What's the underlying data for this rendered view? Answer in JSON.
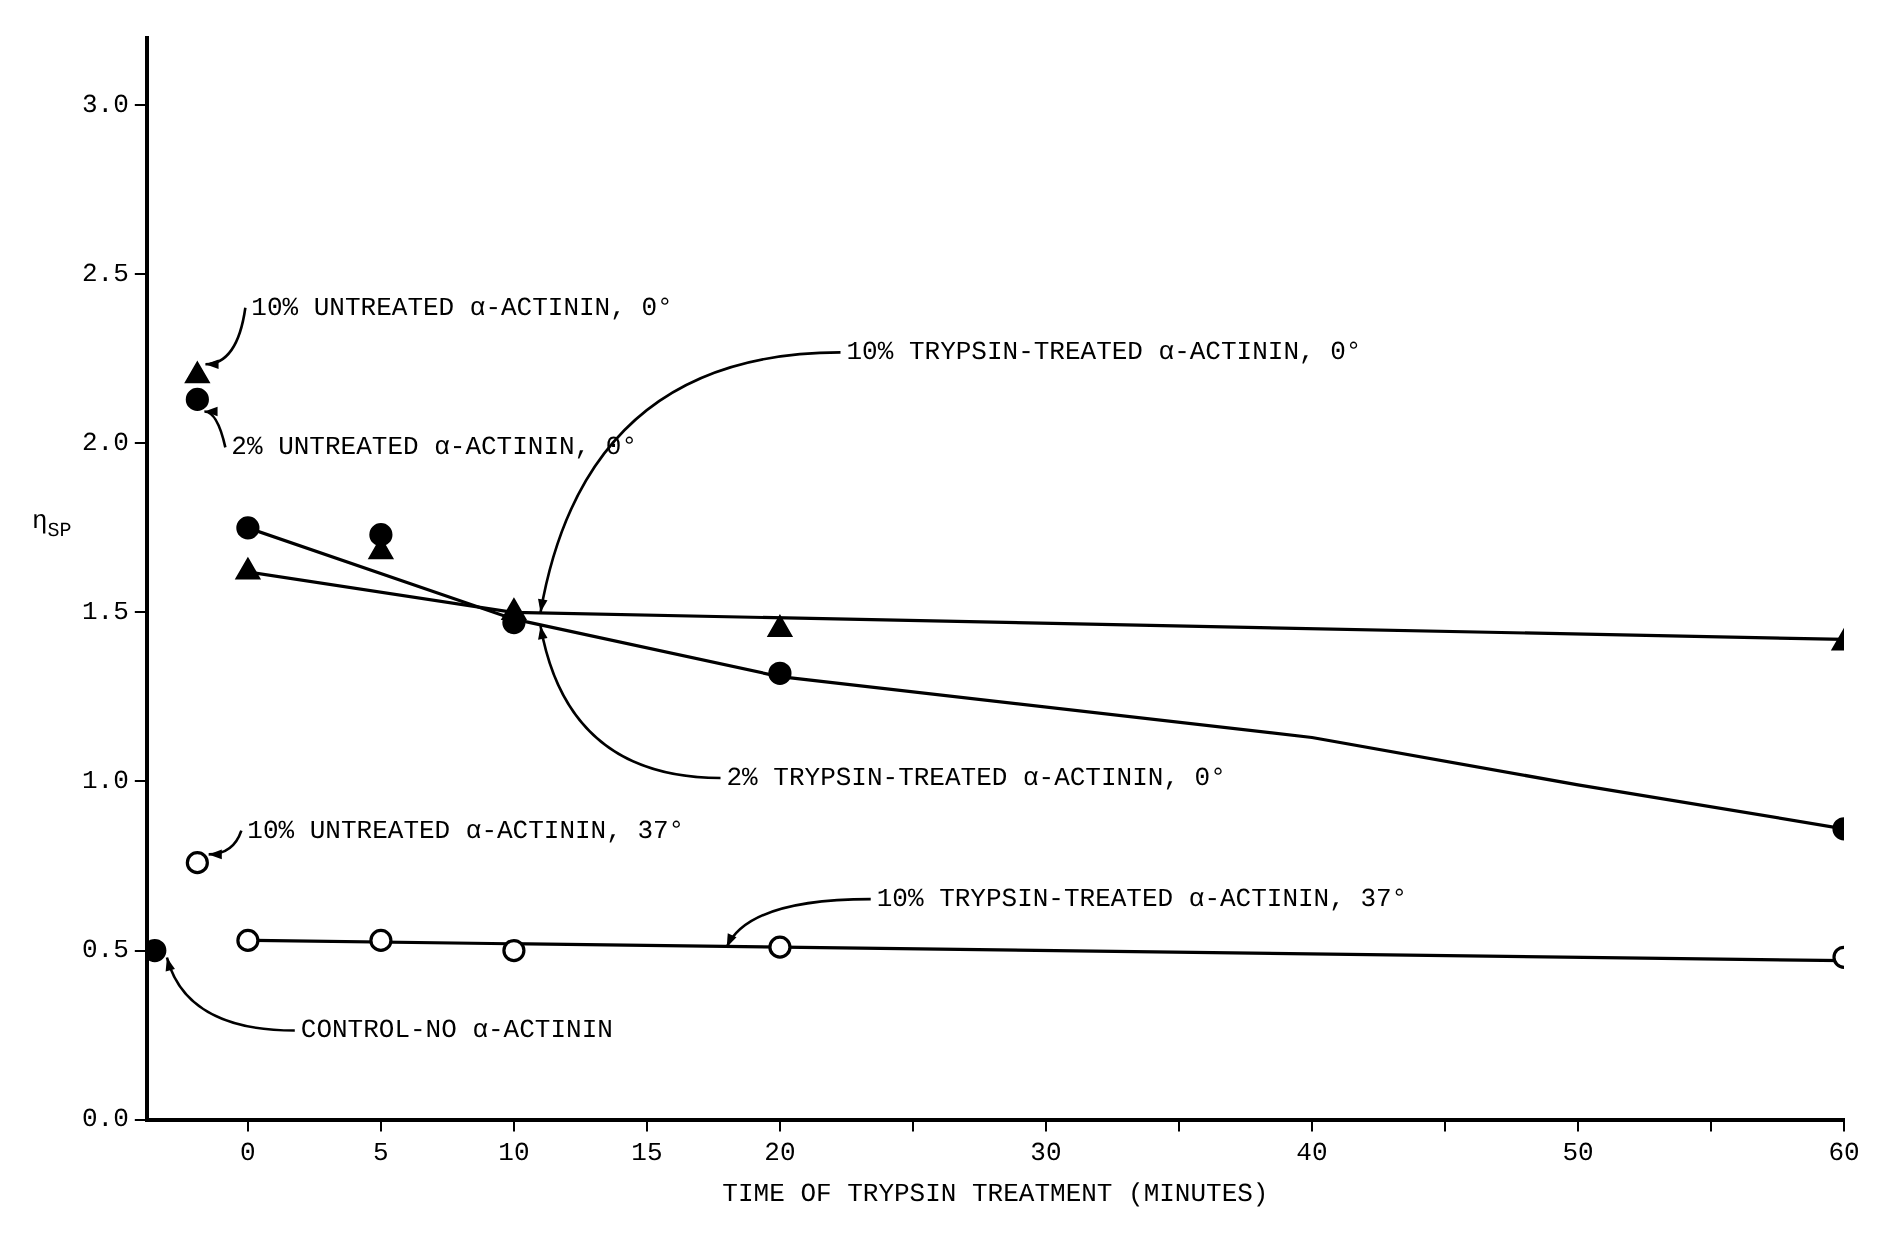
{
  "chart_data": {
    "type": "scatter",
    "xlabel": "TIME OF TRYPSIN TREATMENT (MINUTES)",
    "ylabel": "η$_{SP}$",
    "xlim": [
      -3.8,
      60
    ],
    "ylim": [
      0,
      3.2
    ],
    "xticks": [
      0,
      5,
      10,
      15,
      20,
      {
        "value": 25,
        "label": null
      },
      30,
      {
        "value": 35,
        "label": null
      },
      40,
      {
        "value": 45,
        "label": null
      },
      50,
      {
        "value": 55,
        "label": null
      },
      60
    ],
    "yticks": [
      {
        "value": 0,
        "label": "0.0"
      },
      0.5,
      {
        "value": 1,
        "label": "1.0"
      },
      1.5,
      {
        "value": 2,
        "label": "2.0"
      },
      2.5,
      {
        "value": 3,
        "label": "3.0"
      }
    ],
    "grid": false,
    "legend": false,
    "series": [
      {
        "marker": "triangle",
        "color": "#000000",
        "x": [
          0,
          5,
          10,
          20,
          60
        ],
        "values": [
          1.62,
          1.68,
          1.5,
          1.45,
          1.41
        ]
      },
      {
        "marker": "circle",
        "color": "#000000",
        "x": [
          0,
          5,
          10,
          20,
          60
        ],
        "values": [
          1.75,
          1.73,
          1.47,
          1.32,
          0.86
        ]
      },
      {
        "marker": "circle",
        "color": "#ffffff",
        "x": [
          0,
          5,
          10,
          20,
          60
        ],
        "values": [
          0.53,
          0.53,
          0.5,
          0.51,
          0.48
        ]
      },
      {
        "marker": "triangle",
        "color": "#000000",
        "x": [
          -1.9
        ],
        "values": [
          2.2
        ]
      },
      {
        "marker": "circle",
        "color": "#000000",
        "x": [
          -1.9
        ],
        "values": [
          2.13
        ]
      },
      {
        "marker": "circle",
        "color": "#ffffff",
        "x": [
          -1.9
        ],
        "values": [
          0.76
        ]
      },
      {
        "marker": "circle",
        "color": "#000000",
        "x": [
          -3.5
        ],
        "values": [
          0.5
        ]
      },
      {
        "type": "line",
        "marker": "none",
        "line_style": "solid",
        "color": "#000000",
        "x": [
          0,
          10,
          60
        ],
        "values": [
          1.62,
          1.5,
          1.42
        ]
      },
      {
        "type": "line",
        "marker": "none",
        "line_style": "solid",
        "color": "#000000",
        "x": [
          0,
          10,
          20,
          40,
          50,
          60
        ],
        "values": [
          1.75,
          1.48,
          1.31,
          1.13,
          0.99,
          0.86
        ]
      },
      {
        "type": "line",
        "marker": "none",
        "line_style": "solid",
        "color": "#000000",
        "x": [
          0,
          60
        ],
        "values": [
          0.53,
          0.47
        ]
      }
    ],
    "annotations": [
      {
        "text": "10% UNTREATED α-ACTININ, 0°",
        "x": -1.9,
        "y": 2.2
      },
      {
        "text": "2% UNTREATED α-ACTININ, 0°",
        "x": -1.9,
        "y": 2.13
      },
      {
        "text": "10% TRYPSIN-TREATED α-ACTININ, 0°",
        "x": 11,
        "y": 1.5
      },
      {
        "text": "2% TRYPSIN-TREATED α-ACTININ, 0°",
        "x": 11,
        "y": 1.46
      },
      {
        "text": "10% UNTREATED α-ACTININ, 37°",
        "x": -1.9,
        "y": 0.76
      },
      {
        "text": "10% TRYPSIN-TREATED α-ACTININ, 37°",
        "x": 18,
        "y": 0.51
      },
      {
        "text": "CONTROL-NO α-ACTININ",
        "x": -3.5,
        "y": 0.5
      }
    ]
  }
}
